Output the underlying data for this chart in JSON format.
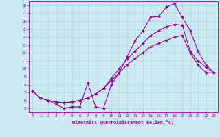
{
  "xlabel": "Windchill (Refroidissement éolien,°C)",
  "bg_color": "#cce8f0",
  "line_color": "#990099",
  "grid_color": "#aad8e0",
  "xlim": [
    -0.5,
    23.5
  ],
  "ylim": [
    4.5,
    18.5
  ],
  "xticks": [
    0,
    1,
    2,
    3,
    4,
    5,
    6,
    7,
    8,
    9,
    10,
    11,
    12,
    13,
    14,
    15,
    16,
    17,
    18,
    19,
    20,
    21,
    22,
    23
  ],
  "yticks": [
    5,
    6,
    7,
    8,
    9,
    10,
    11,
    12,
    13,
    14,
    15,
    16,
    17,
    18
  ],
  "line1_x": [
    0,
    1,
    2,
    3,
    4,
    5,
    6,
    7,
    8,
    9,
    10,
    11,
    12,
    13,
    14,
    15,
    16,
    17,
    18,
    19,
    20,
    21,
    22,
    23
  ],
  "line1_y": [
    7.2,
    6.3,
    6.0,
    5.5,
    5.0,
    5.2,
    5.2,
    8.2,
    5.2,
    5.0,
    8.0,
    9.5,
    11.5,
    13.5,
    14.8,
    16.5,
    16.6,
    17.8,
    18.2,
    16.5,
    14.8,
    12.2,
    10.5,
    9.5
  ],
  "line2_x": [
    0,
    1,
    2,
    3,
    4,
    5,
    6,
    7,
    8,
    9,
    10,
    11,
    12,
    13,
    14,
    15,
    16,
    17,
    18,
    19,
    20,
    21,
    22,
    23
  ],
  "line2_y": [
    7.2,
    6.3,
    6.0,
    5.8,
    5.7,
    5.8,
    6.0,
    6.3,
    6.8,
    7.5,
    8.8,
    10.0,
    11.2,
    12.2,
    13.2,
    14.2,
    14.8,
    15.3,
    15.6,
    15.5,
    12.2,
    11.0,
    10.2,
    9.5
  ],
  "line3_x": [
    0,
    1,
    2,
    3,
    4,
    5,
    6,
    7,
    8,
    9,
    10,
    11,
    12,
    13,
    14,
    15,
    16,
    17,
    18,
    19,
    20,
    21,
    22,
    23
  ],
  "line3_y": [
    7.2,
    6.3,
    6.0,
    5.8,
    5.7,
    5.8,
    6.0,
    6.3,
    6.8,
    7.5,
    8.5,
    9.5,
    10.5,
    11.3,
    12.0,
    12.8,
    13.2,
    13.6,
    14.0,
    14.2,
    12.0,
    10.5,
    9.5,
    9.5
  ]
}
